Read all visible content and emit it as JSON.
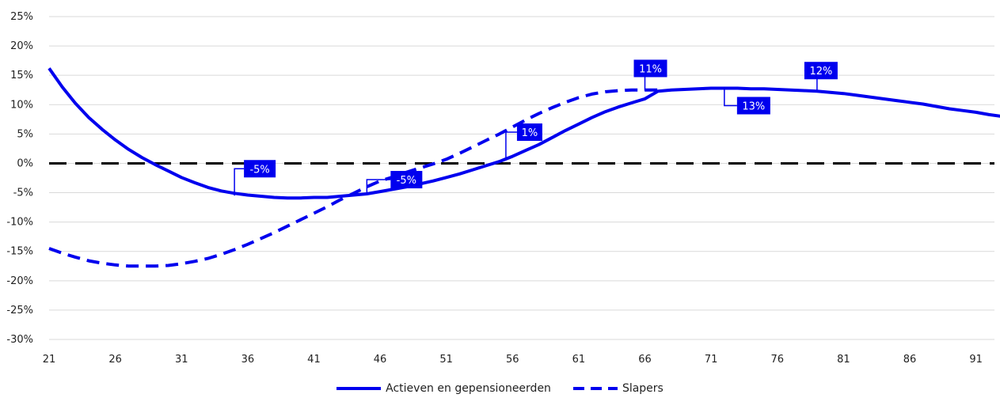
{
  "chart_data": {
    "type": "line",
    "xlim": [
      21,
      94
    ],
    "ylim": [
      -30,
      25
    ],
    "x_ticks": [
      "21",
      "26",
      "31",
      "36",
      "41",
      "46",
      "51",
      "56",
      "61",
      "66",
      "71",
      "76",
      "81",
      "86",
      "91"
    ],
    "y_ticks": [
      "25%",
      "20%",
      "15%",
      "10%",
      "5%",
      "0%",
      "-5%",
      "-10%",
      "-15%",
      "-20%",
      "-25%",
      "-30%"
    ],
    "y_tick_values": [
      25,
      20,
      15,
      10,
      5,
      0,
      -5,
      -10,
      -15,
      -20,
      -25,
      -30
    ],
    "reference_line": 0,
    "grid": true,
    "legend_position": "bottom-center",
    "colors": {
      "series": "#0000ee",
      "reference": "#000000",
      "grid": "#d9d9d9"
    },
    "series": [
      {
        "name": "Actieven en gepensioneerden",
        "style": "solid",
        "x": [
          21,
          22,
          23,
          24,
          25,
          26,
          27,
          28,
          29,
          30,
          31,
          32,
          33,
          34,
          35,
          36,
          37,
          38,
          39,
          40,
          41,
          42,
          43,
          44,
          45,
          46,
          47,
          48,
          49,
          50,
          51,
          52,
          53,
          54,
          55,
          56,
          57,
          58,
          59,
          60,
          61,
          62,
          63,
          64,
          65,
          66,
          67,
          68,
          69,
          70,
          71,
          72,
          73,
          74,
          75,
          76,
          77,
          78,
          79,
          80,
          81,
          82,
          83,
          84,
          85,
          86,
          87,
          88,
          89,
          90,
          91,
          92,
          93,
          94
        ],
        "values": [
          16.2,
          13.0,
          10.2,
          7.8,
          5.8,
          4.0,
          2.4,
          1.0,
          -0.2,
          -1.3,
          -2.4,
          -3.3,
          -4.1,
          -4.7,
          -5.1,
          -5.4,
          -5.6,
          -5.8,
          -5.9,
          -5.9,
          -5.8,
          -5.8,
          -5.6,
          -5.4,
          -5.2,
          -4.8,
          -4.4,
          -4.0,
          -3.5,
          -3.0,
          -2.4,
          -1.8,
          -1.1,
          -0.4,
          0.3,
          1.2,
          2.2,
          3.2,
          4.4,
          5.6,
          6.7,
          7.8,
          8.8,
          9.6,
          10.3,
          11.0,
          12.3,
          12.5,
          12.6,
          12.7,
          12.8,
          12.8,
          12.8,
          12.7,
          12.7,
          12.6,
          12.5,
          12.4,
          12.3,
          12.1,
          11.9,
          11.6,
          11.3,
          11.0,
          10.7,
          10.4,
          10.1,
          9.7,
          9.3,
          9.0,
          8.7,
          8.3,
          8.0,
          7.6
        ]
      },
      {
        "name": "Slapers",
        "style": "dashed",
        "x": [
          21,
          22,
          23,
          24,
          25,
          26,
          27,
          28,
          29,
          30,
          31,
          32,
          33,
          34,
          35,
          36,
          37,
          38,
          39,
          40,
          41,
          42,
          43,
          44,
          45,
          46,
          47,
          48,
          49,
          50,
          51,
          52,
          53,
          54,
          55,
          56,
          57,
          58,
          59,
          60,
          61,
          62,
          63,
          64,
          65,
          66,
          67
        ],
        "values": [
          -14.5,
          -15.3,
          -16.0,
          -16.6,
          -17.0,
          -17.3,
          -17.5,
          -17.5,
          -17.5,
          -17.4,
          -17.1,
          -16.7,
          -16.2,
          -15.5,
          -14.7,
          -13.8,
          -12.8,
          -11.8,
          -10.7,
          -9.6,
          -8.5,
          -7.4,
          -6.2,
          -5.1,
          -4.0,
          -3.0,
          -2.3,
          -1.5,
          -0.8,
          -0.1,
          0.7,
          1.7,
          2.8,
          3.9,
          5.0,
          6.2,
          7.4,
          8.5,
          9.5,
          10.4,
          11.2,
          11.8,
          12.2,
          12.4,
          12.5,
          12.5,
          12.5
        ]
      }
    ],
    "annotations": [
      {
        "text": "-5%",
        "x": 35,
        "y": -5.5
      },
      {
        "text": "-5%",
        "x": 45,
        "y": -5.2
      },
      {
        "text": "1%",
        "x": 55.5,
        "y": 1.0
      },
      {
        "text": "11%",
        "x": 66,
        "y": 12.4
      },
      {
        "text": "13%",
        "x": 72,
        "y": 12.8
      },
      {
        "text": "12%",
        "x": 79,
        "y": 12.3
      }
    ]
  }
}
